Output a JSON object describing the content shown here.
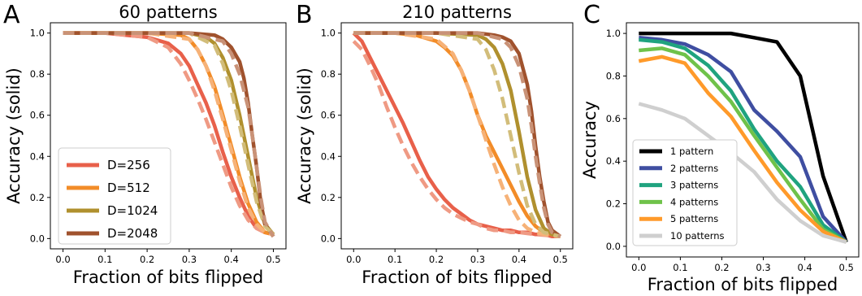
{
  "chart_data": [
    {
      "panel": "A",
      "type": "line",
      "title": "60 patterns",
      "xlabel": "Fraction of bits flipped",
      "ylabel": "Accuracy (solid)",
      "xlim": [
        -0.03,
        0.53
      ],
      "ylim": [
        -0.05,
        1.05
      ],
      "xticks": [
        "0.0",
        "0.1",
        "0.2",
        "0.3",
        "0.4",
        "0.5"
      ],
      "yticks": [
        "0.0",
        "0.2",
        "0.4",
        "0.6",
        "0.8",
        "1.0"
      ],
      "legend": "lower-left",
      "series": [
        {
          "name": "D=256",
          "color": "#e8604a",
          "style": "solid",
          "x": [
            0,
            0.05,
            0.1,
            0.15,
            0.2,
            0.25,
            0.28,
            0.3,
            0.32,
            0.34,
            0.36,
            0.38,
            0.4,
            0.42,
            0.44,
            0.46,
            0.48,
            0.5
          ],
          "y": [
            1.0,
            1.0,
            1.0,
            0.99,
            0.98,
            0.95,
            0.9,
            0.84,
            0.75,
            0.66,
            0.55,
            0.42,
            0.3,
            0.2,
            0.11,
            0.05,
            0.03,
            0.02
          ]
        },
        {
          "name": "D=512",
          "color": "#f28c28",
          "style": "solid",
          "x": [
            0,
            0.1,
            0.2,
            0.28,
            0.3,
            0.32,
            0.34,
            0.36,
            0.38,
            0.4,
            0.42,
            0.44,
            0.46,
            0.48,
            0.5
          ],
          "y": [
            1.0,
            1.0,
            1.0,
            0.99,
            0.97,
            0.92,
            0.84,
            0.74,
            0.6,
            0.45,
            0.3,
            0.17,
            0.08,
            0.03,
            0.02
          ]
        },
        {
          "name": "D=1024",
          "color": "#b0902e",
          "style": "solid",
          "x": [
            0,
            0.1,
            0.2,
            0.3,
            0.34,
            0.36,
            0.38,
            0.4,
            0.42,
            0.44,
            0.46,
            0.48,
            0.5
          ],
          "y": [
            1.0,
            1.0,
            1.0,
            1.0,
            0.98,
            0.95,
            0.88,
            0.77,
            0.6,
            0.4,
            0.2,
            0.07,
            0.02
          ]
        },
        {
          "name": "D=2048",
          "color": "#a0522d",
          "style": "solid",
          "x": [
            0,
            0.1,
            0.2,
            0.3,
            0.36,
            0.38,
            0.4,
            0.42,
            0.43,
            0.44,
            0.45,
            0.46,
            0.47,
            0.48,
            0.5
          ],
          "y": [
            1.0,
            1.0,
            1.0,
            1.0,
            0.99,
            0.97,
            0.93,
            0.86,
            0.78,
            0.66,
            0.5,
            0.35,
            0.18,
            0.07,
            0.01
          ]
        },
        {
          "name": "",
          "color": "#ef9a84",
          "style": "dashed",
          "x": [
            0,
            0.1,
            0.2,
            0.25,
            0.28,
            0.3,
            0.32,
            0.34,
            0.36,
            0.38,
            0.4,
            0.42,
            0.44,
            0.46,
            0.48,
            0.5
          ],
          "y": [
            1.0,
            1.0,
            0.98,
            0.93,
            0.85,
            0.77,
            0.68,
            0.58,
            0.47,
            0.36,
            0.25,
            0.16,
            0.09,
            0.05,
            0.03,
            0.02
          ]
        },
        {
          "name": "",
          "color": "#f6b278",
          "style": "dashed",
          "x": [
            0,
            0.2,
            0.3,
            0.32,
            0.34,
            0.36,
            0.38,
            0.4,
            0.42,
            0.44,
            0.46,
            0.48,
            0.5
          ],
          "y": [
            1.0,
            1.0,
            0.97,
            0.92,
            0.84,
            0.72,
            0.58,
            0.43,
            0.28,
            0.15,
            0.07,
            0.03,
            0.02
          ]
        },
        {
          "name": "",
          "color": "#d2bd7a",
          "style": "dashed",
          "x": [
            0,
            0.2,
            0.3,
            0.36,
            0.38,
            0.4,
            0.42,
            0.44,
            0.46,
            0.48,
            0.5
          ],
          "y": [
            1.0,
            1.0,
            1.0,
            0.94,
            0.85,
            0.72,
            0.55,
            0.36,
            0.18,
            0.06,
            0.02
          ]
        },
        {
          "name": "",
          "color": "#c99277",
          "style": "dashed",
          "x": [
            0,
            0.3,
            0.38,
            0.4,
            0.42,
            0.44,
            0.45,
            0.46,
            0.47,
            0.48,
            0.5
          ],
          "y": [
            1.0,
            1.0,
            0.96,
            0.9,
            0.8,
            0.64,
            0.5,
            0.35,
            0.2,
            0.08,
            0.01
          ]
        }
      ]
    },
    {
      "panel": "B",
      "type": "line",
      "title": "210 patterns",
      "xlabel": "Fraction of bits flipped",
      "ylabel": "Accuracy (solid)",
      "xlim": [
        -0.03,
        0.53
      ],
      "ylim": [
        -0.05,
        1.05
      ],
      "xticks": [
        "0.0",
        "0.1",
        "0.2",
        "0.3",
        "0.4",
        "0.5"
      ],
      "yticks": [
        "0.0",
        "0.2",
        "0.4",
        "0.6",
        "0.8",
        "1.0"
      ],
      "series": [
        {
          "name": "D=256",
          "color": "#e8604a",
          "style": "solid",
          "x": [
            0,
            0.02,
            0.04,
            0.06,
            0.08,
            0.1,
            0.12,
            0.14,
            0.16,
            0.18,
            0.2,
            0.22,
            0.24,
            0.26,
            0.28,
            0.3,
            0.32,
            0.34,
            0.36,
            0.38,
            0.4,
            0.42,
            0.44,
            0.46,
            0.48,
            0.5
          ],
          "y": [
            1.0,
            0.96,
            0.88,
            0.8,
            0.72,
            0.64,
            0.56,
            0.47,
            0.38,
            0.3,
            0.24,
            0.19,
            0.15,
            0.12,
            0.09,
            0.07,
            0.06,
            0.05,
            0.04,
            0.04,
            0.03,
            0.03,
            0.02,
            0.02,
            0.01,
            0.01
          ]
        },
        {
          "name": "D=512",
          "color": "#f28c28",
          "style": "solid",
          "x": [
            0,
            0.1,
            0.15,
            0.2,
            0.22,
            0.24,
            0.26,
            0.28,
            0.3,
            0.32,
            0.34,
            0.36,
            0.38,
            0.4,
            0.42,
            0.44,
            0.46,
            0.48,
            0.5
          ],
          "y": [
            1.0,
            1.0,
            0.99,
            0.96,
            0.93,
            0.89,
            0.82,
            0.72,
            0.6,
            0.5,
            0.42,
            0.34,
            0.26,
            0.18,
            0.11,
            0.06,
            0.03,
            0.02,
            0.01
          ]
        },
        {
          "name": "D=1024",
          "color": "#b0902e",
          "style": "solid",
          "x": [
            0,
            0.1,
            0.2,
            0.3,
            0.32,
            0.34,
            0.36,
            0.38,
            0.4,
            0.42,
            0.44,
            0.46,
            0.48,
            0.5
          ],
          "y": [
            1.0,
            1.0,
            1.0,
            0.99,
            0.97,
            0.93,
            0.85,
            0.72,
            0.52,
            0.3,
            0.14,
            0.05,
            0.02,
            0.01
          ]
        },
        {
          "name": "D=2048",
          "color": "#a0522d",
          "style": "solid",
          "x": [
            0,
            0.1,
            0.2,
            0.3,
            0.34,
            0.36,
            0.38,
            0.4,
            0.42,
            0.43,
            0.44,
            0.45,
            0.46,
            0.47,
            0.48,
            0.5
          ],
          "y": [
            1.0,
            1.0,
            1.0,
            1.0,
            0.99,
            0.98,
            0.96,
            0.9,
            0.75,
            0.62,
            0.45,
            0.3,
            0.18,
            0.08,
            0.04,
            0.01
          ]
        },
        {
          "name": "",
          "color": "#ef9a84",
          "style": "dashed",
          "x": [
            0,
            0.02,
            0.04,
            0.06,
            0.08,
            0.1,
            0.12,
            0.14,
            0.16,
            0.18,
            0.2,
            0.22,
            0.24,
            0.26,
            0.28,
            0.3,
            0.32,
            0.34,
            0.36,
            0.38,
            0.4,
            0.44,
            0.5
          ],
          "y": [
            0.96,
            0.92,
            0.84,
            0.75,
            0.64,
            0.54,
            0.45,
            0.37,
            0.3,
            0.24,
            0.19,
            0.15,
            0.12,
            0.1,
            0.08,
            0.07,
            0.05,
            0.04,
            0.04,
            0.03,
            0.03,
            0.02,
            0.01
          ]
        },
        {
          "name": "",
          "color": "#f6b278",
          "style": "dashed",
          "x": [
            0,
            0.1,
            0.2,
            0.24,
            0.26,
            0.28,
            0.3,
            0.32,
            0.34,
            0.36,
            0.38,
            0.4,
            0.42,
            0.44,
            0.46,
            0.5
          ],
          "y": [
            1.0,
            1.0,
            0.97,
            0.9,
            0.82,
            0.72,
            0.6,
            0.48,
            0.36,
            0.25,
            0.16,
            0.09,
            0.05,
            0.03,
            0.02,
            0.01
          ]
        },
        {
          "name": "",
          "color": "#d2bd7a",
          "style": "dashed",
          "x": [
            0,
            0.2,
            0.3,
            0.32,
            0.34,
            0.36,
            0.38,
            0.4,
            0.42,
            0.44,
            0.46,
            0.48,
            0.5
          ],
          "y": [
            1.0,
            1.0,
            0.97,
            0.92,
            0.82,
            0.68,
            0.5,
            0.32,
            0.16,
            0.07,
            0.03,
            0.02,
            0.01
          ]
        },
        {
          "name": "",
          "color": "#c99277",
          "style": "dashed",
          "x": [
            0,
            0.3,
            0.36,
            0.38,
            0.4,
            0.42,
            0.43,
            0.44,
            0.45,
            0.46,
            0.47,
            0.48,
            0.5
          ],
          "y": [
            1.0,
            1.0,
            0.97,
            0.93,
            0.84,
            0.68,
            0.55,
            0.4,
            0.27,
            0.15,
            0.07,
            0.03,
            0.01
          ]
        }
      ]
    },
    {
      "panel": "C",
      "type": "line",
      "title": "",
      "xlabel": "Fraction of bits flipped",
      "ylabel": "Accuracy",
      "xlim": [
        -0.03,
        0.53
      ],
      "ylim": [
        -0.05,
        1.05
      ],
      "xticks": [
        "0.0",
        "0.1",
        "0.2",
        "0.3",
        "0.4",
        "0.5"
      ],
      "yticks": [
        "0.0",
        "0.2",
        "0.4",
        "0.6",
        "0.8",
        "1.0"
      ],
      "legend": "lower-left",
      "series": [
        {
          "name": "1 pattern",
          "color": "#000000",
          "style": "solid",
          "x": [
            0,
            0.056,
            0.111,
            0.167,
            0.222,
            0.278,
            0.333,
            0.389,
            0.444,
            0.5
          ],
          "y": [
            1.0,
            1.0,
            1.0,
            1.0,
            1.0,
            0.98,
            0.96,
            0.8,
            0.33,
            0.02
          ]
        },
        {
          "name": "2 patterns",
          "color": "#3f4ea1",
          "style": "solid",
          "x": [
            0,
            0.056,
            0.111,
            0.167,
            0.222,
            0.278,
            0.333,
            0.389,
            0.444,
            0.5
          ],
          "y": [
            0.98,
            0.97,
            0.95,
            0.9,
            0.82,
            0.64,
            0.54,
            0.42,
            0.14,
            0.02
          ]
        },
        {
          "name": "3 patterns",
          "color": "#1fa37f",
          "style": "solid",
          "x": [
            0,
            0.056,
            0.111,
            0.167,
            0.222,
            0.278,
            0.333,
            0.389,
            0.444,
            0.5
          ],
          "y": [
            0.97,
            0.96,
            0.93,
            0.85,
            0.73,
            0.55,
            0.4,
            0.28,
            0.1,
            0.02
          ]
        },
        {
          "name": "4 patterns",
          "color": "#6fc24a",
          "style": "solid",
          "x": [
            0,
            0.056,
            0.111,
            0.167,
            0.222,
            0.278,
            0.333,
            0.389,
            0.444,
            0.5
          ],
          "y": [
            0.92,
            0.93,
            0.9,
            0.8,
            0.68,
            0.52,
            0.37,
            0.22,
            0.08,
            0.02
          ]
        },
        {
          "name": "5 patterns",
          "color": "#ff9a2a",
          "style": "solid",
          "x": [
            0,
            0.056,
            0.111,
            0.167,
            0.222,
            0.278,
            0.333,
            0.389,
            0.444,
            0.5
          ],
          "y": [
            0.87,
            0.89,
            0.86,
            0.72,
            0.61,
            0.45,
            0.3,
            0.17,
            0.07,
            0.02
          ]
        },
        {
          "name": "10 patterns",
          "color": "#cfcfcf",
          "style": "solid",
          "x": [
            0,
            0.056,
            0.111,
            0.167,
            0.222,
            0.278,
            0.333,
            0.389,
            0.444,
            0.5
          ],
          "y": [
            0.67,
            0.64,
            0.6,
            0.52,
            0.44,
            0.35,
            0.22,
            0.12,
            0.05,
            0.02
          ]
        }
      ]
    }
  ]
}
